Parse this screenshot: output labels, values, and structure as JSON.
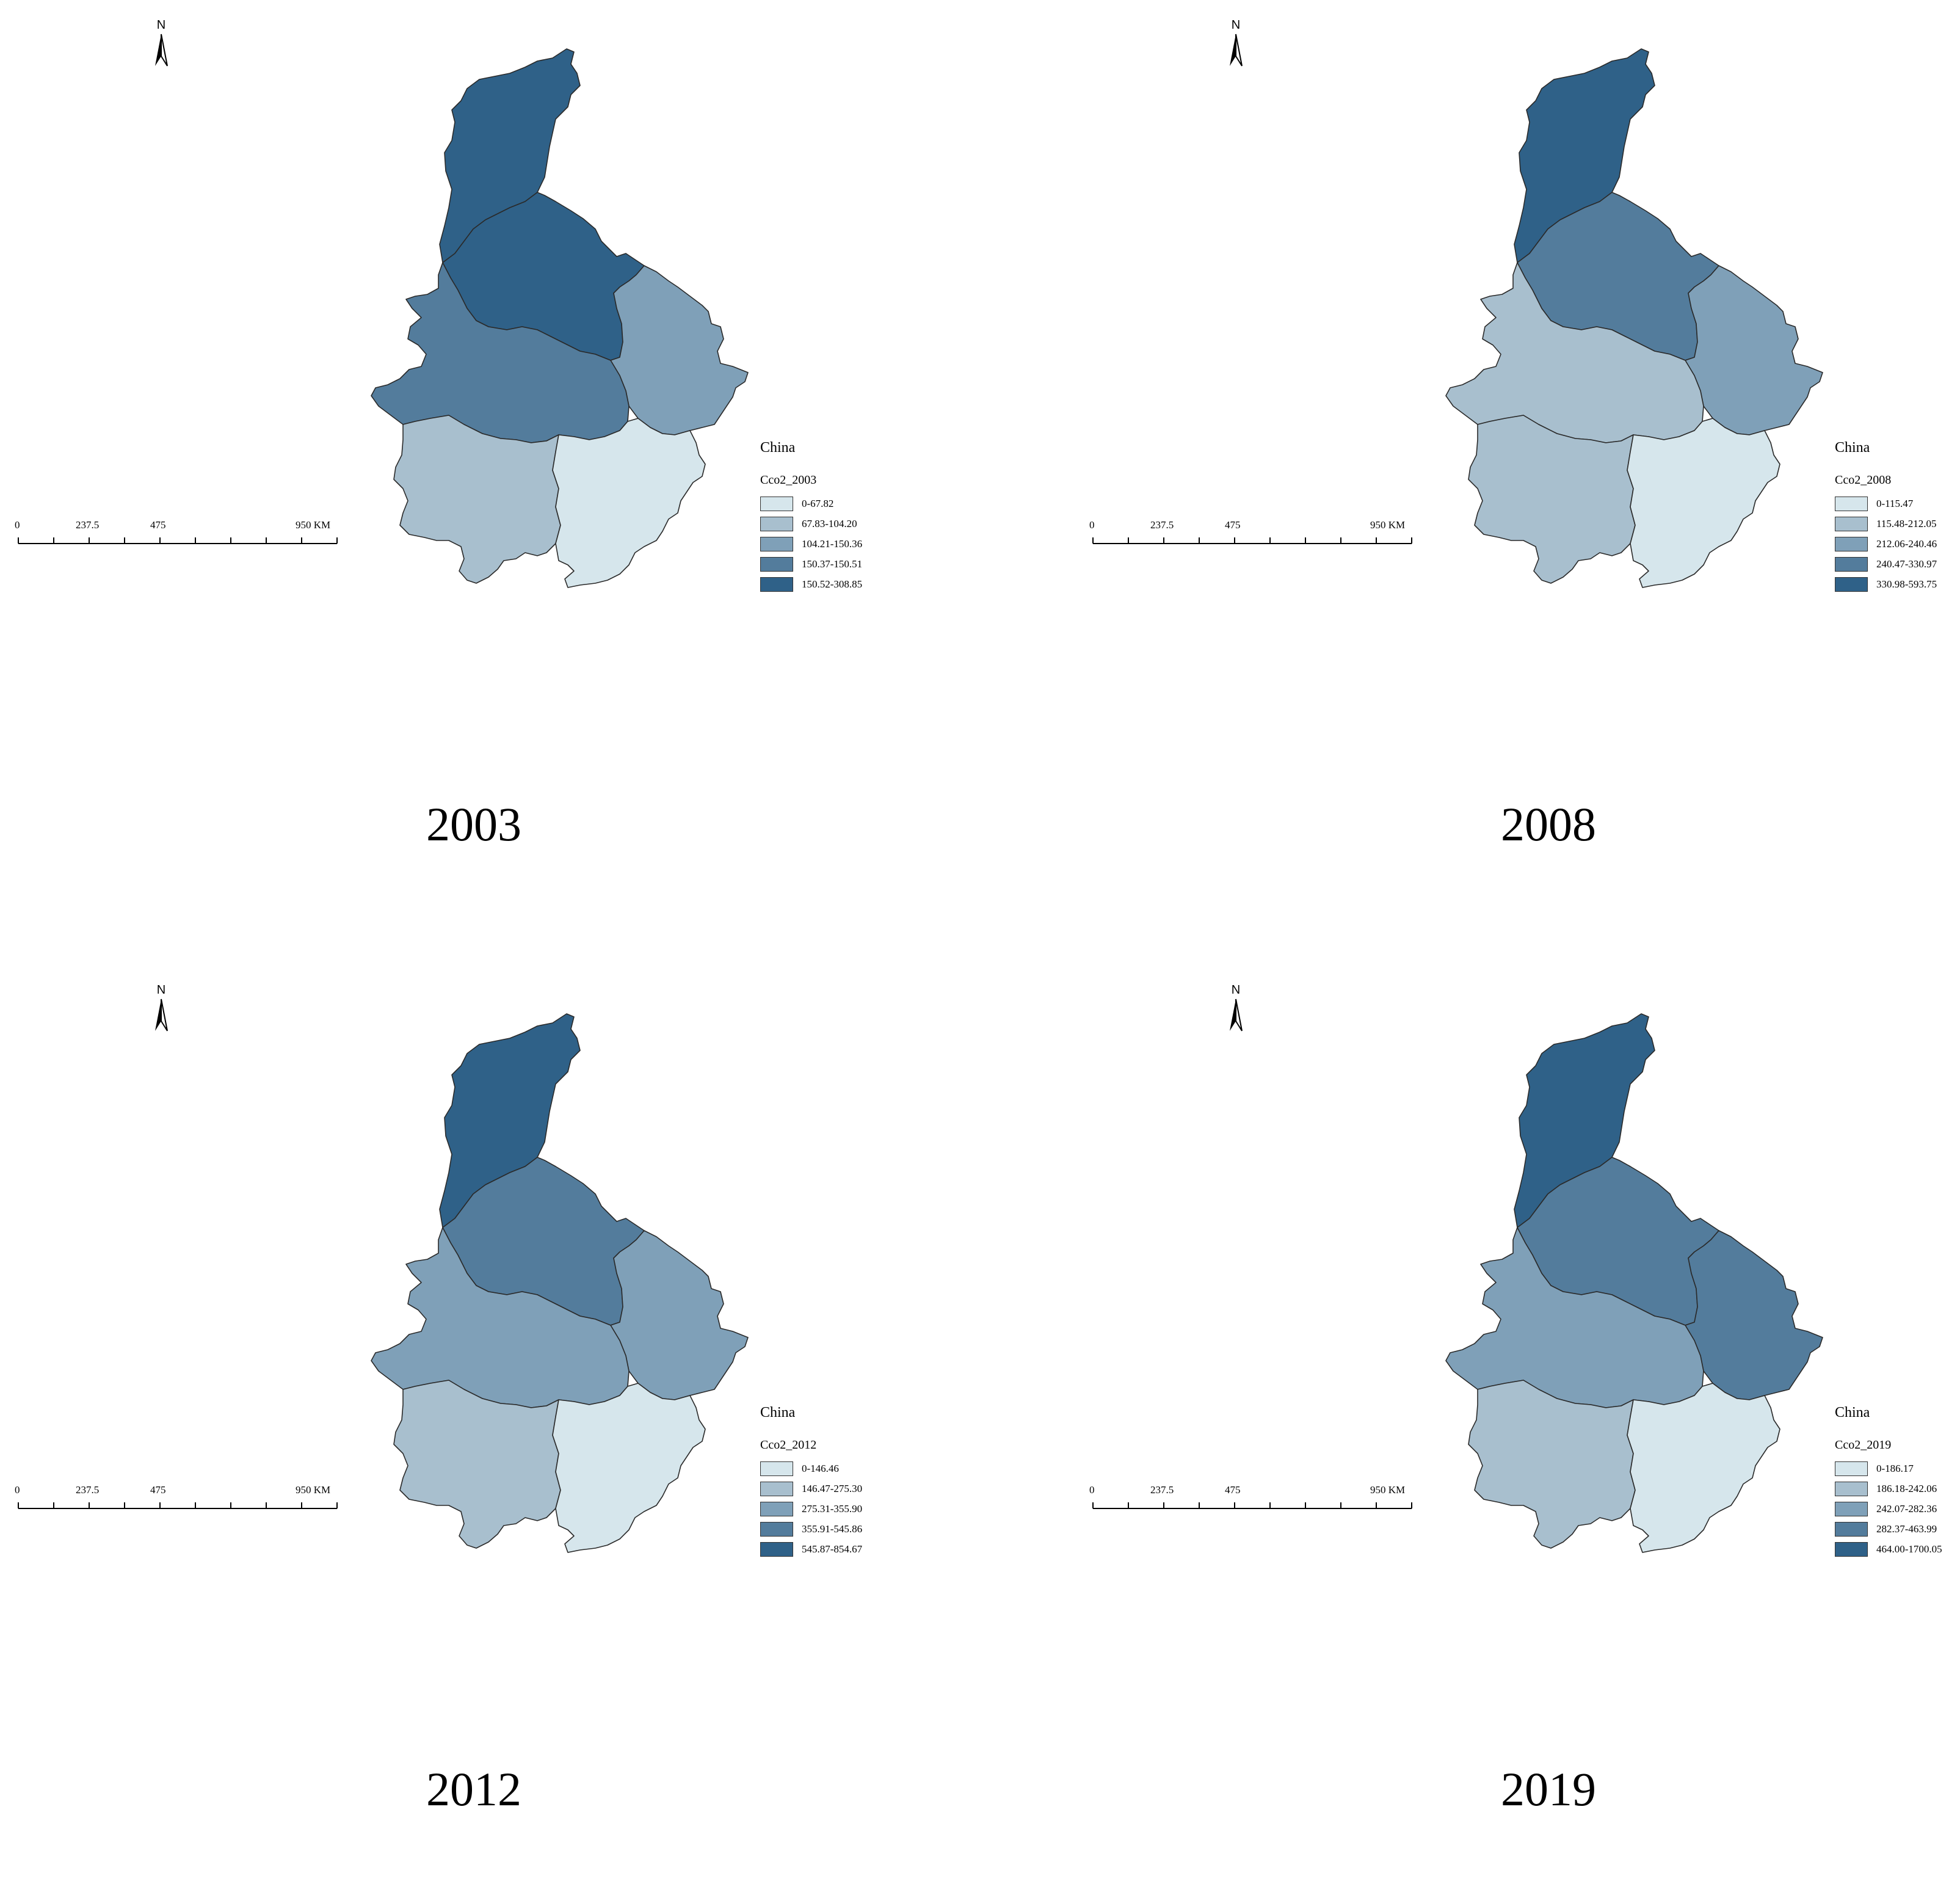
{
  "colors": {
    "class1": "#d6e6ec",
    "class2": "#a8bfce",
    "class3": "#7fa0b8",
    "class4": "#537c9c",
    "class5": "#2f6188",
    "outline": "#2a2a2a"
  },
  "panels": [
    {
      "year": "2003",
      "north_label": "N",
      "scale_labels": [
        "0",
        "237.5",
        "475",
        "950 KM"
      ],
      "legend": {
        "title": "China",
        "field": "Cco2_2003",
        "classes": [
          "0-67.82",
          "67.83-104.20",
          "104.21-150.36",
          "150.37-150.51",
          "150.52-308.85"
        ]
      },
      "region_classes": {
        "north": 5,
        "middle": 5,
        "east": 3,
        "west": 4,
        "southwest": 2,
        "southeast": 1
      }
    },
    {
      "year": "2008",
      "north_label": "N",
      "scale_labels": [
        "0",
        "237.5",
        "475",
        "950 KM"
      ],
      "legend": {
        "title": "China",
        "field": "Cco2_2008",
        "classes": [
          "0-115.47",
          "115.48-212.05",
          "212.06-240.46",
          "240.47-330.97",
          "330.98-593.75"
        ]
      },
      "region_classes": {
        "north": 5,
        "middle": 4,
        "east": 3,
        "west": 2,
        "southwest": 2,
        "southeast": 1
      }
    },
    {
      "year": "2012",
      "north_label": "N",
      "scale_labels": [
        "0",
        "237.5",
        "475",
        "950 KM"
      ],
      "legend": {
        "title": "China",
        "field": "Cco2_2012",
        "classes": [
          "0-146.46",
          "146.47-275.30",
          "275.31-355.90",
          "355.91-545.86",
          "545.87-854.67"
        ]
      },
      "region_classes": {
        "north": 5,
        "middle": 4,
        "east": 3,
        "west": 3,
        "southwest": 2,
        "southeast": 1
      }
    },
    {
      "year": "2019",
      "north_label": "N",
      "scale_labels": [
        "0",
        "237.5",
        "475",
        "950 KM"
      ],
      "legend": {
        "title": "China",
        "field": "Cco2_2019",
        "classes": [
          "0-186.17",
          "186.18-242.06",
          "242.07-282.36",
          "282.37-463.99",
          "464.00-1700.05"
        ]
      },
      "region_classes": {
        "north": 5,
        "middle": 4,
        "east": 4,
        "west": 3,
        "southwest": 2,
        "southeast": 1
      }
    }
  ]
}
